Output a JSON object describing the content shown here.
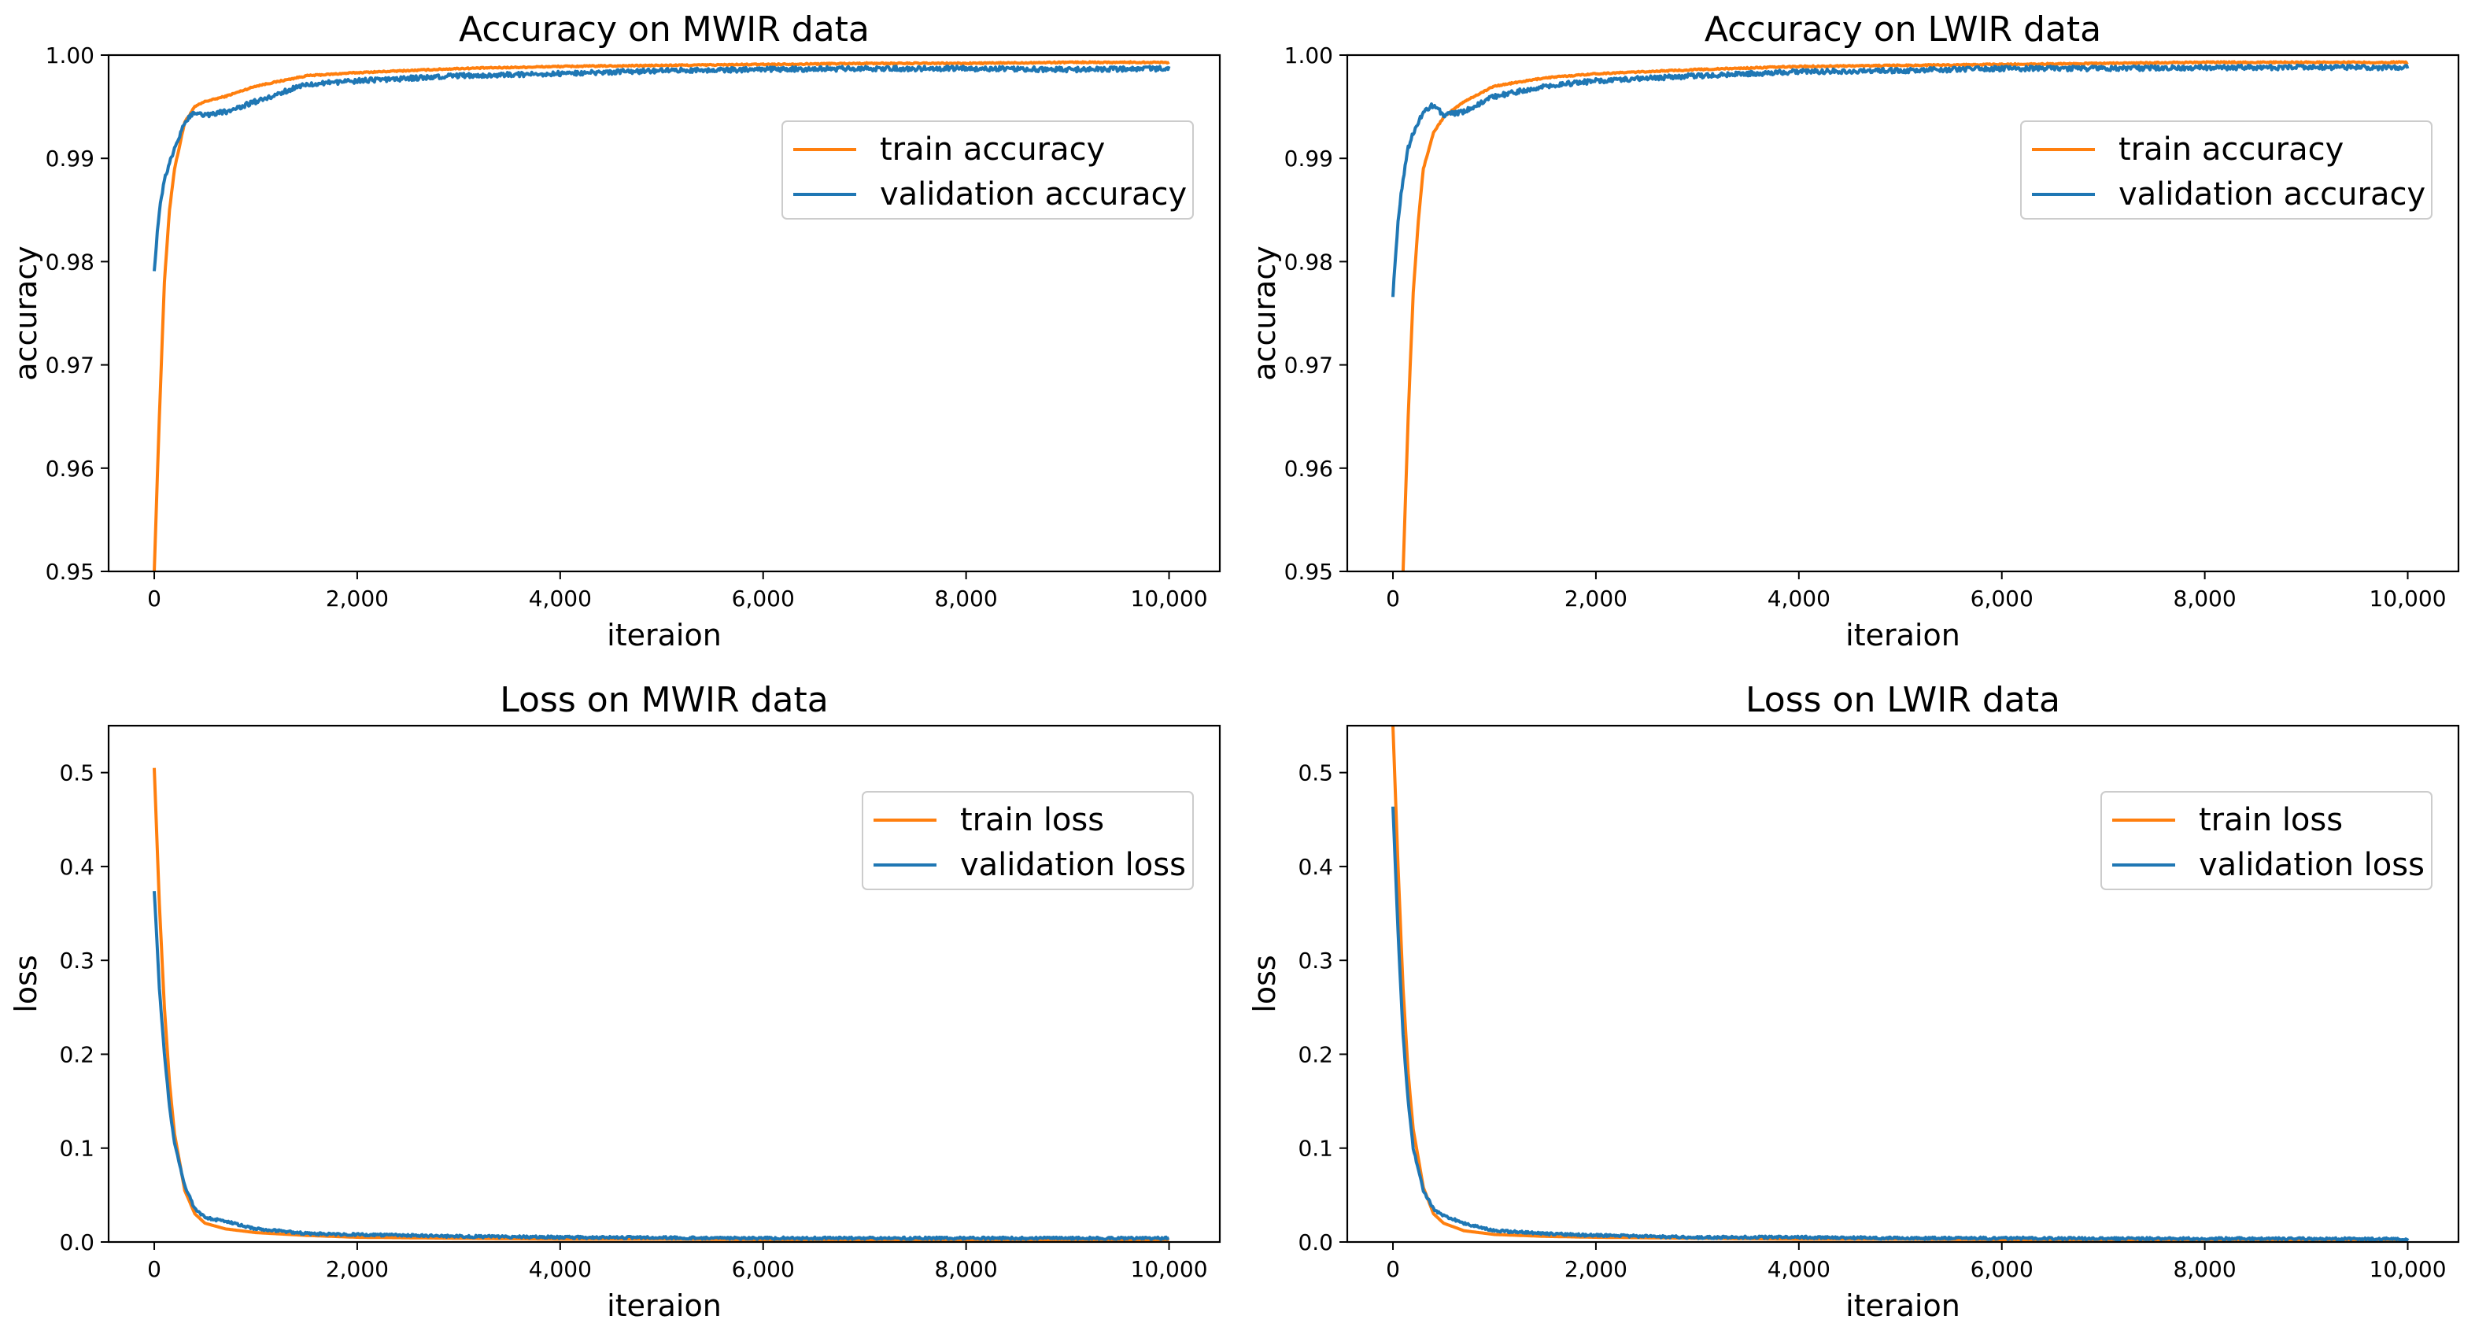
{
  "figure": {
    "series_colors": {
      "train": "#ff7f0e",
      "validation": "#1f77b4"
    }
  },
  "chart_data": [
    {
      "id": "acc-mwir",
      "type": "line",
      "title": "Accuracy on MWIR data",
      "xlabel": "iteraion",
      "ylabel": "accuracy",
      "xlim": [
        -450,
        10500
      ],
      "ylim": [
        0.95,
        1.0
      ],
      "xticks": [
        0,
        2000,
        4000,
        6000,
        8000,
        10000
      ],
      "xtick_labels": [
        "0",
        "2,000",
        "4,000",
        "6,000",
        "8,000",
        "10,000"
      ],
      "yticks": [
        0.95,
        0.96,
        0.97,
        0.98,
        0.99,
        1.0
      ],
      "ytick_labels": [
        "0.95",
        "0.96",
        "0.97",
        "0.98",
        "0.99",
        "1.00"
      ],
      "legend_position": "upper-right",
      "series": [
        {
          "name": "train accuracy",
          "color": "#ff7f0e",
          "x": [
            0,
            50,
            100,
            150,
            200,
            300,
            400,
            500,
            700,
            1000,
            1500,
            2000,
            3000,
            4000,
            5000,
            6000,
            7000,
            8000,
            9000,
            10000
          ],
          "y": [
            0.95,
            0.965,
            0.978,
            0.985,
            0.989,
            0.9935,
            0.995,
            0.9955,
            0.996,
            0.997,
            0.998,
            0.9983,
            0.9987,
            0.9989,
            0.999,
            0.9991,
            0.9992,
            0.9992,
            0.9993,
            0.9993
          ]
        },
        {
          "name": "validation accuracy",
          "color": "#1f77b4",
          "x": [
            0,
            50,
            100,
            200,
            300,
            400,
            500,
            700,
            1000,
            1500,
            2000,
            3000,
            4000,
            5000,
            6000,
            7000,
            8000,
            9000,
            10000
          ],
          "y": [
            0.9793,
            0.985,
            0.988,
            0.991,
            0.9935,
            0.9945,
            0.9942,
            0.9945,
            0.9955,
            0.9972,
            0.9975,
            0.998,
            0.9982,
            0.9985,
            0.9986,
            0.9987,
            0.9987,
            0.9986,
            0.9987
          ]
        }
      ]
    },
    {
      "id": "acc-lwir",
      "type": "line",
      "title": "Accuracy on LWIR data",
      "xlabel": "iteraion",
      "ylabel": "accuracy",
      "xlim": [
        -450,
        10500
      ],
      "ylim": [
        0.95,
        1.0
      ],
      "xticks": [
        0,
        2000,
        4000,
        6000,
        8000,
        10000
      ],
      "xtick_labels": [
        "0",
        "2,000",
        "4,000",
        "6,000",
        "8,000",
        "10,000"
      ],
      "yticks": [
        0.95,
        0.96,
        0.97,
        0.98,
        0.99,
        1.0
      ],
      "ytick_labels": [
        "0.95",
        "0.96",
        "0.97",
        "0.98",
        "0.99",
        "1.00"
      ],
      "legend_position": "upper-right",
      "series": [
        {
          "name": "train accuracy",
          "color": "#ff7f0e",
          "x": [
            100,
            150,
            200,
            250,
            300,
            400,
            500,
            700,
            1000,
            1500,
            2000,
            3000,
            4000,
            5000,
            6000,
            7000,
            8000,
            9000,
            10000
          ],
          "y": [
            0.95,
            0.965,
            0.977,
            0.984,
            0.989,
            0.9925,
            0.994,
            0.9955,
            0.997,
            0.9978,
            0.9982,
            0.9986,
            0.9989,
            0.999,
            0.9991,
            0.9992,
            0.9993,
            0.9993,
            0.9993
          ]
        },
        {
          "name": "validation accuracy",
          "color": "#1f77b4",
          "x": [
            0,
            50,
            100,
            150,
            200,
            300,
            400,
            500,
            700,
            1000,
            1500,
            2000,
            3000,
            4000,
            5000,
            6000,
            7000,
            8000,
            9000,
            10000
          ],
          "y": [
            0.9768,
            0.984,
            0.988,
            0.991,
            0.9925,
            0.9945,
            0.9952,
            0.9942,
            0.9945,
            0.996,
            0.997,
            0.9975,
            0.998,
            0.9984,
            0.9985,
            0.9987,
            0.9987,
            0.9988,
            0.9988,
            0.9988
          ]
        }
      ]
    },
    {
      "id": "loss-mwir",
      "type": "line",
      "title": "Loss on MWIR data",
      "xlabel": "iteraion",
      "ylabel": "loss",
      "xlim": [
        -450,
        10500
      ],
      "ylim": [
        0.0,
        0.55
      ],
      "xticks": [
        0,
        2000,
        4000,
        6000,
        8000,
        10000
      ],
      "xtick_labels": [
        "0",
        "2,000",
        "4,000",
        "6,000",
        "8,000",
        "10,000"
      ],
      "yticks": [
        0.0,
        0.1,
        0.2,
        0.3,
        0.4,
        0.5
      ],
      "ytick_labels": [
        "0.0",
        "0.1",
        "0.2",
        "0.3",
        "0.4",
        "0.5"
      ],
      "legend_position": "upper-right",
      "series": [
        {
          "name": "train loss",
          "color": "#ff7f0e",
          "x": [
            0,
            50,
            100,
            150,
            200,
            300,
            400,
            500,
            700,
            1000,
            1500,
            2000,
            3000,
            4000,
            5000,
            6000,
            7000,
            8000,
            9000,
            10000
          ],
          "y": [
            0.505,
            0.36,
            0.25,
            0.17,
            0.115,
            0.055,
            0.03,
            0.02,
            0.014,
            0.01,
            0.007,
            0.005,
            0.004,
            0.003,
            0.003,
            0.0025,
            0.002,
            0.002,
            0.002,
            0.002
          ]
        },
        {
          "name": "validation loss",
          "color": "#1f77b4",
          "x": [
            0,
            50,
            100,
            150,
            200,
            300,
            400,
            500,
            700,
            1000,
            1500,
            2000,
            3000,
            4000,
            5000,
            6000,
            7000,
            8000,
            9000,
            10000
          ],
          "y": [
            0.375,
            0.27,
            0.2,
            0.145,
            0.105,
            0.06,
            0.035,
            0.026,
            0.022,
            0.014,
            0.009,
            0.008,
            0.006,
            0.005,
            0.0045,
            0.004,
            0.004,
            0.004,
            0.004,
            0.004
          ]
        }
      ]
    },
    {
      "id": "loss-lwir",
      "type": "line",
      "title": "Loss on LWIR data",
      "xlabel": "iteraion",
      "ylabel": "loss",
      "xlim": [
        -450,
        10500
      ],
      "ylim": [
        0.0,
        0.55
      ],
      "xticks": [
        0,
        2000,
        4000,
        6000,
        8000,
        10000
      ],
      "xtick_labels": [
        "0",
        "2,000",
        "4,000",
        "6,000",
        "8,000",
        "10,000"
      ],
      "yticks": [
        0.0,
        0.1,
        0.2,
        0.3,
        0.4,
        0.5
      ],
      "ytick_labels": [
        "0.0",
        "0.1",
        "0.2",
        "0.3",
        "0.4",
        "0.5"
      ],
      "legend_position": "upper-right",
      "series": [
        {
          "name": "train loss",
          "color": "#ff7f0e",
          "x": [
            0,
            50,
            100,
            150,
            200,
            300,
            400,
            500,
            700,
            1000,
            1500,
            2000,
            3000,
            4000,
            5000,
            6000,
            7000,
            8000,
            9000,
            10000
          ],
          "y": [
            0.55,
            0.4,
            0.27,
            0.18,
            0.12,
            0.058,
            0.03,
            0.02,
            0.012,
            0.008,
            0.006,
            0.005,
            0.004,
            0.003,
            0.003,
            0.0025,
            0.002,
            0.002,
            0.002,
            0.002
          ]
        },
        {
          "name": "validation loss",
          "color": "#1f77b4",
          "x": [
            0,
            50,
            100,
            150,
            200,
            300,
            400,
            500,
            700,
            1000,
            1500,
            2000,
            3000,
            4000,
            5000,
            6000,
            7000,
            8000,
            9000,
            10000
          ],
          "y": [
            0.465,
            0.33,
            0.22,
            0.15,
            0.1,
            0.055,
            0.035,
            0.028,
            0.02,
            0.012,
            0.009,
            0.007,
            0.005,
            0.005,
            0.004,
            0.004,
            0.0035,
            0.0035,
            0.0035,
            0.003
          ]
        }
      ]
    }
  ]
}
